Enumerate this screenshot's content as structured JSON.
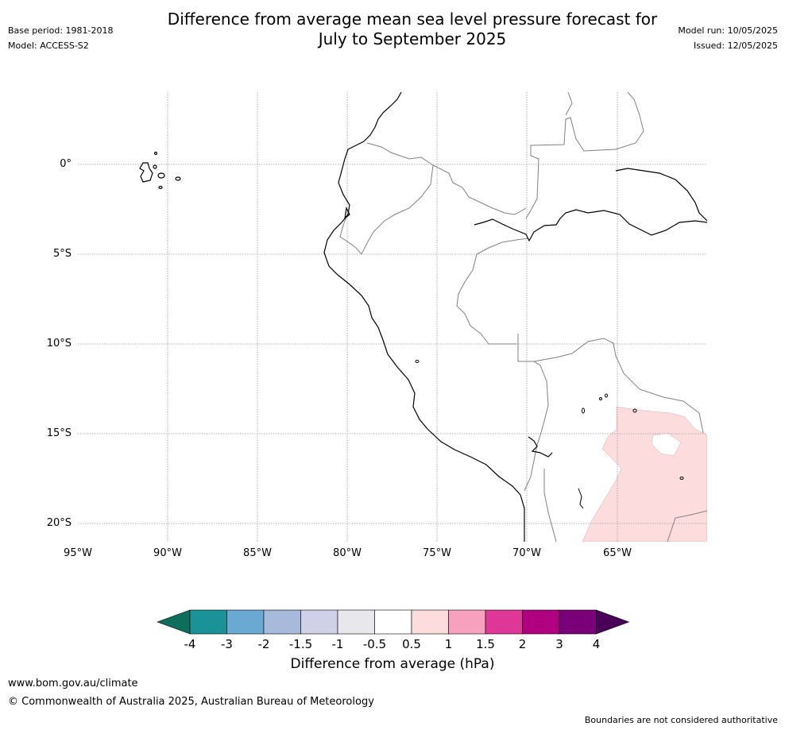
{
  "header": {
    "title_line1": "Difference from average mean sea level pressure forecast for",
    "title_line2": "July to September 2025",
    "base_period": "Base period: 1981-2018",
    "model": "Model: ACCESS-S2",
    "model_run": "Model run: 10/05/2025",
    "issued": "Issued: 12/05/2025"
  },
  "map": {
    "lat_labels": [
      "0°",
      "5°S",
      "10°S",
      "15°S",
      "20°S"
    ],
    "lon_labels": [
      "95°W",
      "90°W",
      "85°W",
      "80°W",
      "75°W",
      "70°W",
      "65°W"
    ],
    "colors": {
      "coast": "#000000",
      "border": "#808080",
      "grid": "#9a9a9a",
      "anomaly_0_5_to_1": "#fcdcdc"
    }
  },
  "colorbar": {
    "label": "Difference from average (hPa)",
    "ticks": [
      "-4",
      "-3",
      "-2",
      "-1.5",
      "-1",
      "-0.5",
      "0.5",
      "1",
      "1.5",
      "2",
      "3",
      "4"
    ],
    "colors": [
      "#0d6e5c",
      "#1b9298",
      "#6aaad2",
      "#a8badb",
      "#d0d0e6",
      "#e8e8ec",
      "#ffffff",
      "#fcdcdc",
      "#f7a1bf",
      "#de3797",
      "#b0007f",
      "#7a0079",
      "#4a0059"
    ]
  },
  "footer": {
    "url": "www.bom.gov.au/climate",
    "copyright": "© Commonwealth of Australia 2025, Australian Bureau of Meteorology",
    "disclaimer": "Boundaries are not considered authoritative"
  }
}
